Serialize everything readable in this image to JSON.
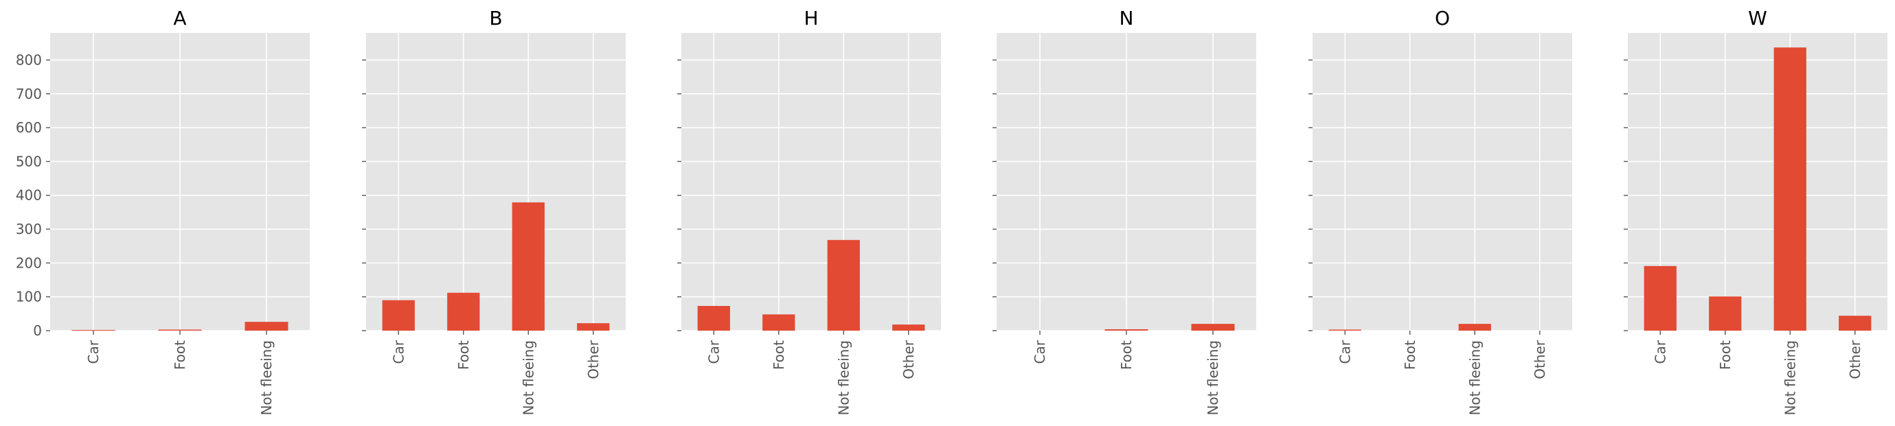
{
  "chart_data": {
    "type": "bar",
    "grid": true,
    "ylim": [
      0,
      880
    ],
    "yticks": [
      "0",
      "100",
      "200",
      "300",
      "400",
      "500",
      "600",
      "700",
      "800"
    ],
    "bar_color": "#E24A33",
    "panel_background": "#E5E5E5",
    "grid_color": "#FFFFFF",
    "panels": [
      {
        "title": "A",
        "categories": [
          "Car",
          "Foot",
          "Not fleeing"
        ],
        "values": [
          2,
          3,
          26
        ]
      },
      {
        "title": "B",
        "categories": [
          "Car",
          "Foot",
          "Not fleeing",
          "Other"
        ],
        "values": [
          90,
          112,
          379,
          22
        ]
      },
      {
        "title": "H",
        "categories": [
          "Car",
          "Foot",
          "Not fleeing",
          "Other"
        ],
        "values": [
          73,
          48,
          268,
          18
        ]
      },
      {
        "title": "N",
        "categories": [
          "Car",
          "Foot",
          "Not fleeing"
        ],
        "values": [
          0,
          4,
          20
        ]
      },
      {
        "title": "O",
        "categories": [
          "Car",
          "Foot",
          "Not fleeing",
          "Other"
        ],
        "values": [
          3,
          0,
          20,
          0
        ]
      },
      {
        "title": "W",
        "categories": [
          "Car",
          "Foot",
          "Not fleeing",
          "Other"
        ],
        "values": [
          191,
          101,
          837,
          44
        ]
      }
    ]
  }
}
